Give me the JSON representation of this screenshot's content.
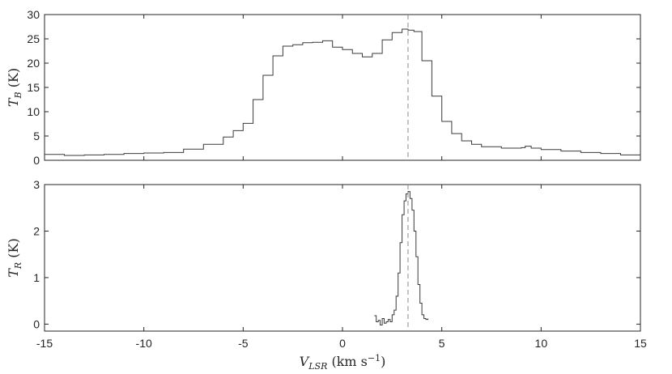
{
  "chart_data": [
    {
      "type": "line",
      "step": true,
      "xlim": [
        -15,
        15
      ],
      "ylim": [
        0,
        30
      ],
      "ylabel_symbol": "T",
      "ylabel_subscript": "B",
      "ylabel_unit": "(K)",
      "yticks": [
        0,
        5,
        10,
        15,
        20,
        25,
        30
      ],
      "marker_x": 3.3,
      "series": [
        {
          "x": [
            -15,
            -14,
            -13,
            -12,
            -11,
            -10,
            -9,
            -8,
            -7,
            -6,
            -5.5,
            -5,
            -4.5,
            -4,
            -3.5,
            -3,
            -2.5,
            -2,
            -1.5,
            -1,
            -0.5,
            0,
            0.5,
            1,
            1.5,
            2,
            2.5,
            3,
            3.3,
            3.6,
            4,
            4.5,
            5,
            5.5,
            6,
            6.5,
            7,
            8,
            9,
            9.2,
            9.5,
            10,
            11,
            12,
            13,
            14,
            15
          ],
          "y": [
            1.2,
            1.0,
            1.1,
            1.2,
            1.4,
            1.5,
            1.6,
            2.3,
            3.3,
            4.8,
            6.1,
            7.6,
            12.5,
            17.5,
            21.5,
            23.5,
            23.8,
            24.2,
            24.3,
            24.6,
            23.3,
            22.8,
            22.0,
            21.3,
            22.0,
            24.8,
            26.3,
            27.0,
            26.8,
            26.5,
            20.5,
            13.2,
            8.0,
            5.5,
            4.0,
            3.3,
            2.8,
            2.5,
            2.6,
            2.9,
            2.5,
            2.2,
            1.9,
            1.6,
            1.4,
            1.1,
            0.9
          ]
        }
      ]
    },
    {
      "type": "line",
      "step": true,
      "xlim": [
        -15,
        15
      ],
      "ylim": [
        -0.15,
        3
      ],
      "ylabel_symbol": "T",
      "ylabel_subscript": "R",
      "ylabel_unit": "(K)",
      "yticks": [
        0,
        1,
        2,
        3
      ],
      "xticks": [
        -15,
        -10,
        -5,
        0,
        5,
        10,
        15
      ],
      "xlabel_symbol": "V",
      "xlabel_subscript": "LSR",
      "xlabel_unit": "(km s",
      "xlabel_unit_sup": "−1",
      "xlabel_unit_end": ")",
      "marker_x": 3.3,
      "series": [
        {
          "x": [
            1.6,
            1.7,
            1.8,
            1.9,
            2.0,
            2.1,
            2.2,
            2.3,
            2.4,
            2.5,
            2.6,
            2.7,
            2.8,
            2.9,
            3.0,
            3.1,
            3.2,
            3.3,
            3.4,
            3.5,
            3.6,
            3.7,
            3.8,
            3.9,
            4.0,
            4.1,
            4.2,
            4.3
          ],
          "y": [
            0.18,
            0.05,
            0.08,
            -0.02,
            0.12,
            0.02,
            0.05,
            0.1,
            0.05,
            0.2,
            0.3,
            0.6,
            1.1,
            1.75,
            2.35,
            2.65,
            2.8,
            2.85,
            2.7,
            2.45,
            2.0,
            1.45,
            0.85,
            0.45,
            0.2,
            0.12,
            0.1,
            0.12
          ]
        }
      ]
    }
  ]
}
